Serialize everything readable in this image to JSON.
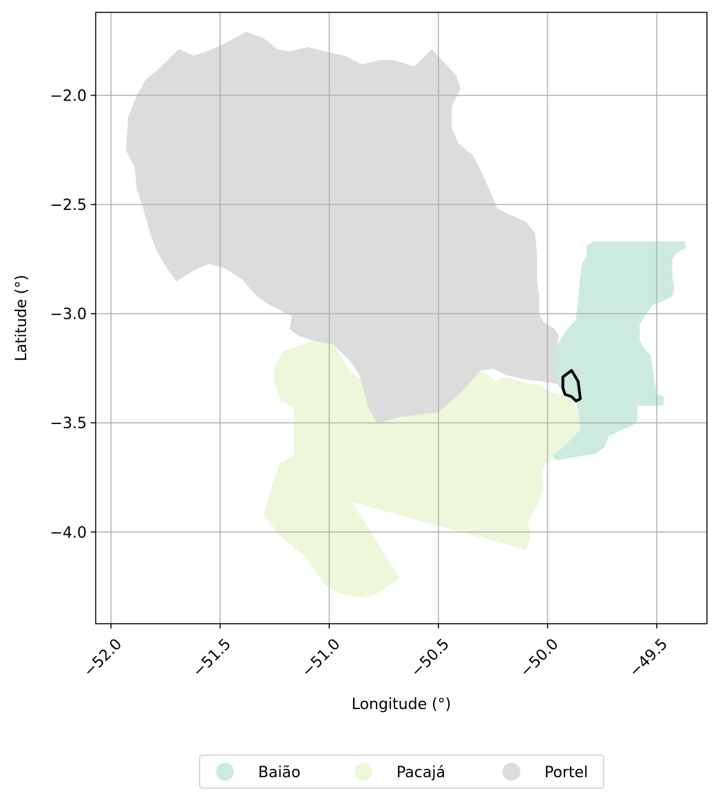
{
  "chart_data": {
    "type": "map",
    "title": "",
    "xlabel": "Longitude (°)",
    "ylabel": "Latitude (°)",
    "xlim": [
      -52.07,
      -49.27
    ],
    "ylim": [
      -4.42,
      -1.62
    ],
    "xticks": [
      -52.0,
      -51.5,
      -51.0,
      -50.5,
      -50.0,
      -49.5
    ],
    "yticks": [
      -2.0,
      -2.5,
      -3.0,
      -3.5,
      -4.0
    ],
    "xtick_labels": [
      "−52.0",
      "−51.5",
      "−51.0",
      "−50.5",
      "−50.0",
      "−49.5"
    ],
    "ytick_labels": [
      "−2.0",
      "−2.5",
      "−3.0",
      "−3.5",
      "−4.0"
    ],
    "grid": true,
    "legend_position": "bottom-center",
    "regions": [
      {
        "name": "Baião",
        "color": "#cdeadf",
        "polygon": [
          [
            -49.96,
            -3.15
          ],
          [
            -49.9,
            -3.06
          ],
          [
            -49.87,
            -3.03
          ],
          [
            -49.86,
            -2.96
          ],
          [
            -49.85,
            -2.84
          ],
          [
            -49.84,
            -2.77
          ],
          [
            -49.82,
            -2.74
          ],
          [
            -49.82,
            -2.69
          ],
          [
            -49.79,
            -2.67
          ],
          [
            -49.37,
            -2.67
          ],
          [
            -49.37,
            -2.7
          ],
          [
            -49.41,
            -2.72
          ],
          [
            -49.43,
            -2.75
          ],
          [
            -49.43,
            -2.83
          ],
          [
            -49.42,
            -2.88
          ],
          [
            -49.43,
            -2.92
          ],
          [
            -49.47,
            -2.94
          ],
          [
            -49.52,
            -2.96
          ],
          [
            -49.55,
            -3.0
          ],
          [
            -49.58,
            -3.05
          ],
          [
            -49.58,
            -3.12
          ],
          [
            -49.56,
            -3.16
          ],
          [
            -49.53,
            -3.19
          ],
          [
            -49.52,
            -3.25
          ],
          [
            -49.51,
            -3.32
          ],
          [
            -49.5,
            -3.37
          ],
          [
            -49.47,
            -3.38
          ],
          [
            -49.47,
            -3.42
          ],
          [
            -49.59,
            -3.42
          ],
          [
            -49.59,
            -3.49
          ],
          [
            -49.61,
            -3.51
          ],
          [
            -49.66,
            -3.53
          ],
          [
            -49.72,
            -3.56
          ],
          [
            -49.74,
            -3.61
          ],
          [
            -49.78,
            -3.64
          ],
          [
            -49.85,
            -3.65
          ],
          [
            -49.9,
            -3.66
          ],
          [
            -49.96,
            -3.67
          ],
          [
            -49.99,
            -3.64
          ],
          [
            -49.97,
            -3.6
          ],
          [
            -49.88,
            -3.52
          ],
          [
            -49.86,
            -3.45
          ],
          [
            -49.87,
            -3.39
          ],
          [
            -49.91,
            -3.37
          ],
          [
            -49.95,
            -3.33
          ],
          [
            -49.97,
            -3.27
          ],
          [
            -50.0,
            -3.23
          ],
          [
            -50.02,
            -3.19
          ]
        ]
      },
      {
        "name": "Pacajá",
        "color": "#edf7da",
        "polygon": [
          [
            -51.21,
            -3.17
          ],
          [
            -51.14,
            -3.15
          ],
          [
            -51.06,
            -3.12
          ],
          [
            -51.0,
            -3.11
          ],
          [
            -50.98,
            -3.14
          ],
          [
            -50.95,
            -3.19
          ],
          [
            -50.91,
            -3.26
          ],
          [
            -50.85,
            -3.31
          ],
          [
            -50.82,
            -3.38
          ],
          [
            -50.8,
            -3.44
          ],
          [
            -50.77,
            -3.49
          ],
          [
            -50.67,
            -3.47
          ],
          [
            -50.5,
            -3.45
          ],
          [
            -50.43,
            -3.4
          ],
          [
            -50.38,
            -3.33
          ],
          [
            -50.32,
            -3.26
          ],
          [
            -50.28,
            -3.28
          ],
          [
            -50.24,
            -3.31
          ],
          [
            -50.19,
            -3.29
          ],
          [
            -50.1,
            -3.32
          ],
          [
            -50.04,
            -3.33
          ],
          [
            -49.98,
            -3.36
          ],
          [
            -49.9,
            -3.39
          ],
          [
            -49.86,
            -3.45
          ],
          [
            -49.85,
            -3.53
          ],
          [
            -49.89,
            -3.57
          ],
          [
            -49.94,
            -3.62
          ],
          [
            -49.99,
            -3.66
          ],
          [
            -50.03,
            -3.72
          ],
          [
            -50.02,
            -3.8
          ],
          [
            -50.05,
            -3.88
          ],
          [
            -50.09,
            -3.95
          ],
          [
            -50.08,
            -4.03
          ],
          [
            -50.1,
            -4.08
          ],
          [
            -50.9,
            -3.86
          ],
          [
            -50.68,
            -4.21
          ],
          [
            -50.78,
            -4.28
          ],
          [
            -50.85,
            -4.3
          ],
          [
            -50.95,
            -4.28
          ],
          [
            -51.01,
            -4.25
          ],
          [
            -51.05,
            -4.2
          ],
          [
            -51.1,
            -4.12
          ],
          [
            -51.16,
            -4.07
          ],
          [
            -51.22,
            -4.02
          ],
          [
            -51.3,
            -3.92
          ],
          [
            -51.27,
            -3.82
          ],
          [
            -51.23,
            -3.69
          ],
          [
            -51.16,
            -3.65
          ],
          [
            -51.16,
            -3.43
          ],
          [
            -51.22,
            -3.4
          ],
          [
            -51.25,
            -3.32
          ],
          [
            -51.25,
            -3.25
          ]
        ]
      },
      {
        "name": "Portel",
        "color": "#dcdcdc",
        "polygon": [
          [
            -51.69,
            -1.79
          ],
          [
            -51.62,
            -1.82
          ],
          [
            -51.56,
            -1.8
          ],
          [
            -51.49,
            -1.77
          ],
          [
            -51.38,
            -1.71
          ],
          [
            -51.3,
            -1.74
          ],
          [
            -51.24,
            -1.79
          ],
          [
            -51.18,
            -1.8
          ],
          [
            -51.1,
            -1.78
          ],
          [
            -51.02,
            -1.8
          ],
          [
            -50.93,
            -1.82
          ],
          [
            -50.85,
            -1.86
          ],
          [
            -50.77,
            -1.84
          ],
          [
            -50.7,
            -1.84
          ],
          [
            -50.61,
            -1.87
          ],
          [
            -50.53,
            -1.79
          ],
          [
            -50.42,
            -1.91
          ],
          [
            -50.4,
            -1.97
          ],
          [
            -50.44,
            -2.05
          ],
          [
            -50.44,
            -2.15
          ],
          [
            -50.41,
            -2.22
          ],
          [
            -50.34,
            -2.28
          ],
          [
            -50.3,
            -2.36
          ],
          [
            -50.26,
            -2.45
          ],
          [
            -50.23,
            -2.52
          ],
          [
            -50.17,
            -2.55
          ],
          [
            -50.1,
            -2.58
          ],
          [
            -50.06,
            -2.63
          ],
          [
            -50.05,
            -2.72
          ],
          [
            -50.05,
            -2.84
          ],
          [
            -50.04,
            -2.92
          ],
          [
            -50.04,
            -3.0
          ],
          [
            -50.02,
            -3.04
          ],
          [
            -49.97,
            -3.07
          ],
          [
            -49.95,
            -3.1
          ],
          [
            -49.96,
            -3.15
          ],
          [
            -49.98,
            -3.2
          ],
          [
            -49.97,
            -3.27
          ],
          [
            -49.95,
            -3.32
          ],
          [
            -50.02,
            -3.31
          ],
          [
            -50.1,
            -3.3
          ],
          [
            -50.19,
            -3.28
          ],
          [
            -50.25,
            -3.25
          ],
          [
            -50.31,
            -3.26
          ],
          [
            -50.37,
            -3.33
          ],
          [
            -50.43,
            -3.39
          ],
          [
            -50.5,
            -3.45
          ],
          [
            -50.67,
            -3.47
          ],
          [
            -50.78,
            -3.5
          ],
          [
            -50.82,
            -3.43
          ],
          [
            -50.84,
            -3.35
          ],
          [
            -50.86,
            -3.28
          ],
          [
            -50.9,
            -3.22
          ],
          [
            -50.98,
            -3.14
          ],
          [
            -51.08,
            -3.12
          ],
          [
            -51.14,
            -3.1
          ],
          [
            -51.18,
            -3.07
          ],
          [
            -51.17,
            -3.01
          ],
          [
            -51.27,
            -2.96
          ],
          [
            -51.33,
            -2.92
          ],
          [
            -51.4,
            -2.84
          ],
          [
            -51.48,
            -2.79
          ],
          [
            -51.55,
            -2.77
          ],
          [
            -51.62,
            -2.8
          ],
          [
            -51.7,
            -2.85
          ],
          [
            -51.75,
            -2.78
          ],
          [
            -51.79,
            -2.71
          ],
          [
            -51.82,
            -2.63
          ],
          [
            -51.85,
            -2.52
          ],
          [
            -51.88,
            -2.43
          ],
          [
            -51.89,
            -2.33
          ],
          [
            -51.93,
            -2.25
          ],
          [
            -51.92,
            -2.1
          ],
          [
            -51.88,
            -2.0
          ],
          [
            -51.84,
            -1.93
          ],
          [
            -51.78,
            -1.88
          ]
        ]
      }
    ],
    "highlight": {
      "name": "",
      "color": "#000000",
      "polygon": [
        [
          -49.93,
          -3.29
        ],
        [
          -49.89,
          -3.26
        ],
        [
          -49.86,
          -3.31
        ],
        [
          -49.85,
          -3.39
        ],
        [
          -49.87,
          -3.4
        ],
        [
          -49.89,
          -3.38
        ],
        [
          -49.92,
          -3.37
        ],
        [
          -49.93,
          -3.34
        ]
      ]
    },
    "legend": [
      {
        "label": "Baião",
        "color": "#cdeadf"
      },
      {
        "label": "Pacajá",
        "color": "#edf7da"
      },
      {
        "label": "Portel",
        "color": "#dcdcdc"
      }
    ]
  }
}
